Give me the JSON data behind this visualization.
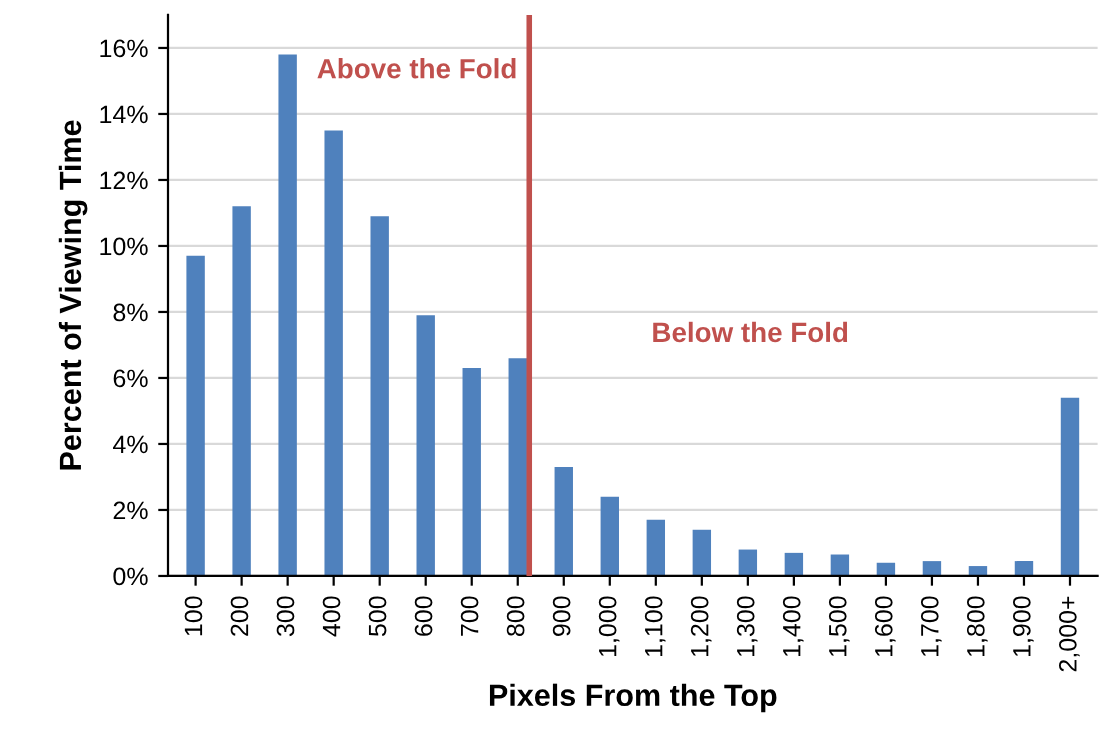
{
  "chart_data": {
    "type": "bar",
    "xlabel": "Pixels From the Top",
    "ylabel": "Percent of Viewing Time",
    "categories": [
      "100",
      "200",
      "300",
      "400",
      "500",
      "600",
      "700",
      "800",
      "900",
      "1,000",
      "1,100",
      "1,200",
      "1,300",
      "1,400",
      "1,500",
      "1,600",
      "1,700",
      "1,800",
      "1,900",
      "2,000+"
    ],
    "values": [
      9.7,
      11.2,
      15.8,
      13.5,
      10.9,
      7.9,
      6.3,
      6.6,
      3.3,
      2.4,
      1.7,
      1.4,
      0.8,
      0.7,
      0.65,
      0.4,
      0.45,
      0.3,
      0.45,
      5.4
    ],
    "color": "#4f81bd",
    "ylim": [
      0,
      17
    ],
    "yticks": [
      {
        "value": 0,
        "label": "0%"
      },
      {
        "value": 2,
        "label": "2%"
      },
      {
        "value": 4,
        "label": "4%"
      },
      {
        "value": 6,
        "label": "6%"
      },
      {
        "value": 8,
        "label": "8%"
      },
      {
        "value": 10,
        "label": "10%"
      },
      {
        "value": 12,
        "label": "12%"
      },
      {
        "value": 14,
        "label": "14%"
      },
      {
        "value": 16,
        "label": "16%"
      }
    ],
    "grid": "y",
    "ref_lines": [
      {
        "axis": "x",
        "value": "800",
        "color": "#c0504d"
      }
    ],
    "annotations": [
      "Above the Fold",
      "Below the Fold"
    ]
  }
}
